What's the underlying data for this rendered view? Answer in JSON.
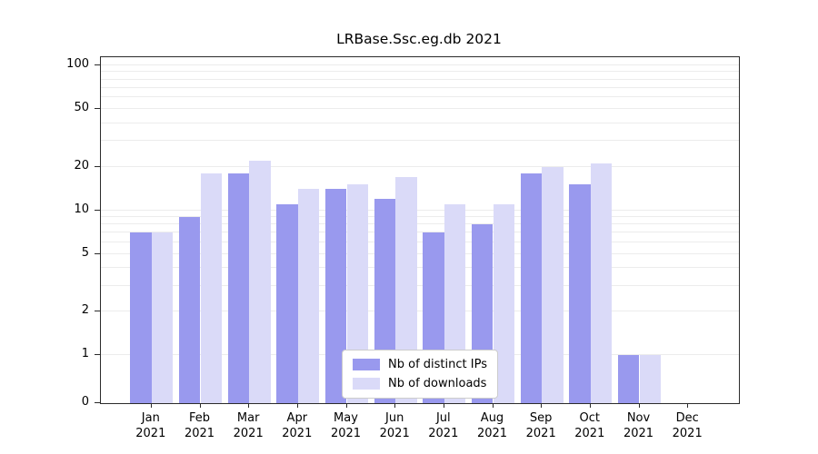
{
  "title": "LRBase.Ssc.eg.db 2021",
  "chart_data": {
    "type": "bar",
    "title": "LRBase.Ssc.eg.db 2021",
    "categories": [
      "Jan 2021",
      "Feb 2021",
      "Mar 2021",
      "Apr 2021",
      "May 2021",
      "Jun 2021",
      "Jul 2021",
      "Aug 2021",
      "Sep 2021",
      "Oct 2021",
      "Nov 2021",
      "Dec 2021"
    ],
    "series": [
      {
        "name": "Nb of distinct IPs",
        "color": "#9999ee",
        "values": [
          7,
          9,
          18,
          11,
          14,
          12,
          7,
          8,
          18,
          15,
          1,
          0
        ]
      },
      {
        "name": "Nb of downloads",
        "color": "#dadaf8",
        "values": [
          7,
          18,
          22,
          14,
          15,
          17,
          11,
          11,
          20,
          21,
          1,
          0
        ]
      }
    ],
    "xlabel": "",
    "ylabel": "",
    "yscale": "symlog",
    "ylim": [
      0,
      114
    ],
    "yticks": [
      0,
      1,
      2,
      5,
      10,
      20,
      50,
      100
    ],
    "minor_gridlines": [
      1,
      2,
      3,
      4,
      5,
      6,
      7,
      8,
      9,
      10,
      20,
      30,
      40,
      50,
      60,
      70,
      80,
      90,
      100
    ],
    "grid": true,
    "legend_position": "lower center"
  }
}
